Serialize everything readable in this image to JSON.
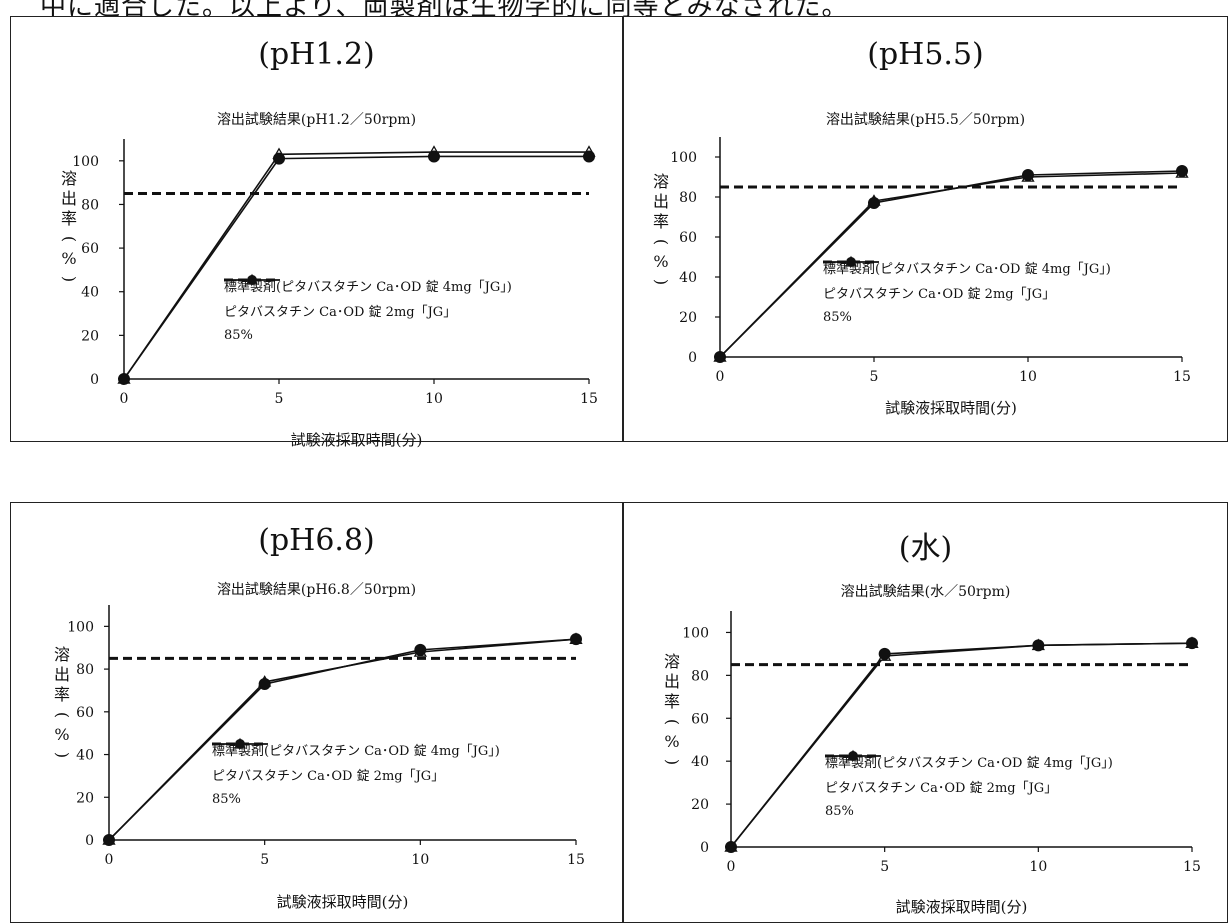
{
  "header_text": "中に適合した。以上より、両製剤は生物学的に同等とみなされた。",
  "legend": [
    "標準製剤(ピタバスタチン Ca･OD 錠 4mg「JG」)",
    "ピタバスタチン Ca･OD 錠 2mg「JG」",
    "85%"
  ],
  "chart_data": [
    {
      "type": "line",
      "title": "(pH1.2)",
      "subtitle": "溶出試験結果(pH1.2／50rpm)",
      "xlabel": "試験液採取時間(分)",
      "ylabel": "溶出率(%)",
      "x": [
        0,
        5,
        10,
        15
      ],
      "xlim": [
        0,
        15
      ],
      "ylim": [
        0,
        110
      ],
      "yticks": [
        0,
        20,
        40,
        60,
        80,
        100
      ],
      "series": [
        {
          "name": "標準製剤(ピタバスタチン Ca･OD 錠 4mg「JG」)",
          "marker": "triangle-open",
          "values": [
            0,
            103,
            104,
            104
          ]
        },
        {
          "name": "ピタバスタチン Ca･OD 錠 2mg「JG」",
          "marker": "circle-filled",
          "values": [
            0,
            101,
            102,
            102
          ]
        }
      ],
      "reference_line": {
        "name": "85%",
        "value": 85
      }
    },
    {
      "type": "line",
      "title": "(pH5.5)",
      "subtitle": "溶出試験結果(pH5.5／50rpm)",
      "xlabel": "試験液採取時間(分)",
      "ylabel": "溶出率(%)",
      "x": [
        0,
        5,
        10,
        15
      ],
      "xlim": [
        0,
        15
      ],
      "ylim": [
        0,
        110
      ],
      "yticks": [
        0,
        20,
        40,
        60,
        80,
        100
      ],
      "series": [
        {
          "name": "標準製剤(ピタバスタチン Ca･OD 錠 4mg「JG」)",
          "marker": "triangle-open",
          "values": [
            0,
            78,
            90,
            92
          ]
        },
        {
          "name": "ピタバスタチン Ca･OD 錠 2mg「JG」",
          "marker": "circle-filled",
          "values": [
            0,
            77,
            91,
            93
          ]
        }
      ],
      "reference_line": {
        "name": "85%",
        "value": 85
      }
    },
    {
      "type": "line",
      "title": "(pH6.8)",
      "subtitle": "溶出試験結果(pH6.8／50rpm)",
      "xlabel": "試験液採取時間(分)",
      "ylabel": "溶出率(%)",
      "x": [
        0,
        5,
        10,
        15
      ],
      "xlim": [
        0,
        15
      ],
      "ylim": [
        0,
        110
      ],
      "yticks": [
        0,
        20,
        40,
        60,
        80,
        100
      ],
      "series": [
        {
          "name": "標準製剤(ピタバスタチン Ca･OD 錠 4mg「JG」)",
          "marker": "triangle-open",
          "values": [
            0,
            74,
            88,
            94
          ]
        },
        {
          "name": "ピタバスタチン Ca･OD 錠 2mg「JG」",
          "marker": "circle-filled",
          "values": [
            0,
            73,
            89,
            94
          ]
        }
      ],
      "reference_line": {
        "name": "85%",
        "value": 85
      }
    },
    {
      "type": "line",
      "title": "(水)",
      "subtitle": "溶出試験結果(水／50rpm)",
      "xlabel": "試験液採取時間(分)",
      "ylabel": "溶出率(%)",
      "x": [
        0,
        5,
        10,
        15
      ],
      "xlim": [
        0,
        15
      ],
      "ylim": [
        0,
        110
      ],
      "yticks": [
        0,
        20,
        40,
        60,
        80,
        100
      ],
      "series": [
        {
          "name": "標準製剤(ピタバスタチン Ca･OD 錠 4mg「JG」)",
          "marker": "triangle-open",
          "values": [
            0,
            89,
            94,
            95
          ]
        },
        {
          "name": "ピタバスタチン Ca･OD 錠 2mg「JG」",
          "marker": "circle-filled",
          "values": [
            0,
            90,
            94,
            95
          ]
        }
      ],
      "reference_line": {
        "name": "85%",
        "value": 85
      }
    }
  ]
}
